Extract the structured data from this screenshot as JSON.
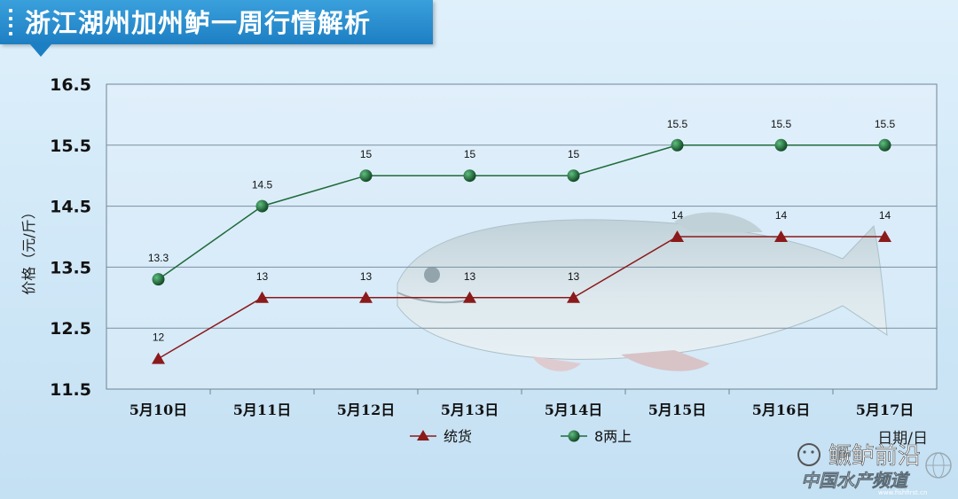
{
  "header": {
    "title": "浙江湖州加州鲈一周行情解析"
  },
  "watermark": {
    "account": "鳜鲈前沿",
    "site": "中国水产频道",
    "site_url": "www.fishfirst.cn"
  },
  "colors": {
    "series1": "#8b1a1a",
    "series2": "#1f6b3a",
    "grid": "#7a8fa0",
    "banner": "#1d7fc3"
  },
  "chart_data": {
    "type": "line",
    "title": "浙江湖州加州鲈一周行情解析",
    "ylabel": "价格（元/斤）",
    "xlabel": "日期/日",
    "ylim": [
      11.5,
      16.5
    ],
    "yticks": [
      "16.5",
      "15.5",
      "14.5",
      "13.5",
      "12.5",
      "11.5"
    ],
    "ytick_values": [
      16.5,
      15.5,
      14.5,
      13.5,
      12.5,
      11.5
    ],
    "categories": [
      "5月10日",
      "5月11日",
      "5月12日",
      "5月13日",
      "5月14日",
      "5月15日",
      "5月16日",
      "5月17日"
    ],
    "grid": true,
    "legend_position": "bottom-center",
    "series": [
      {
        "name": "统货",
        "marker": "triangle",
        "color": "#8b1a1a",
        "values": [
          12,
          13,
          13,
          13,
          13,
          14,
          14,
          14
        ],
        "labels": [
          "12",
          "13",
          "13",
          "13",
          "13",
          "14",
          "14",
          "14"
        ]
      },
      {
        "name": "8两上",
        "marker": "circle",
        "color": "#1f6b3a",
        "values": [
          13.3,
          14.5,
          15,
          15,
          15,
          15.5,
          15.5,
          15.5
        ],
        "labels": [
          "13.3",
          "14.5",
          "15",
          "15",
          "15",
          "15.5",
          "15.5",
          "15.5"
        ]
      }
    ]
  }
}
